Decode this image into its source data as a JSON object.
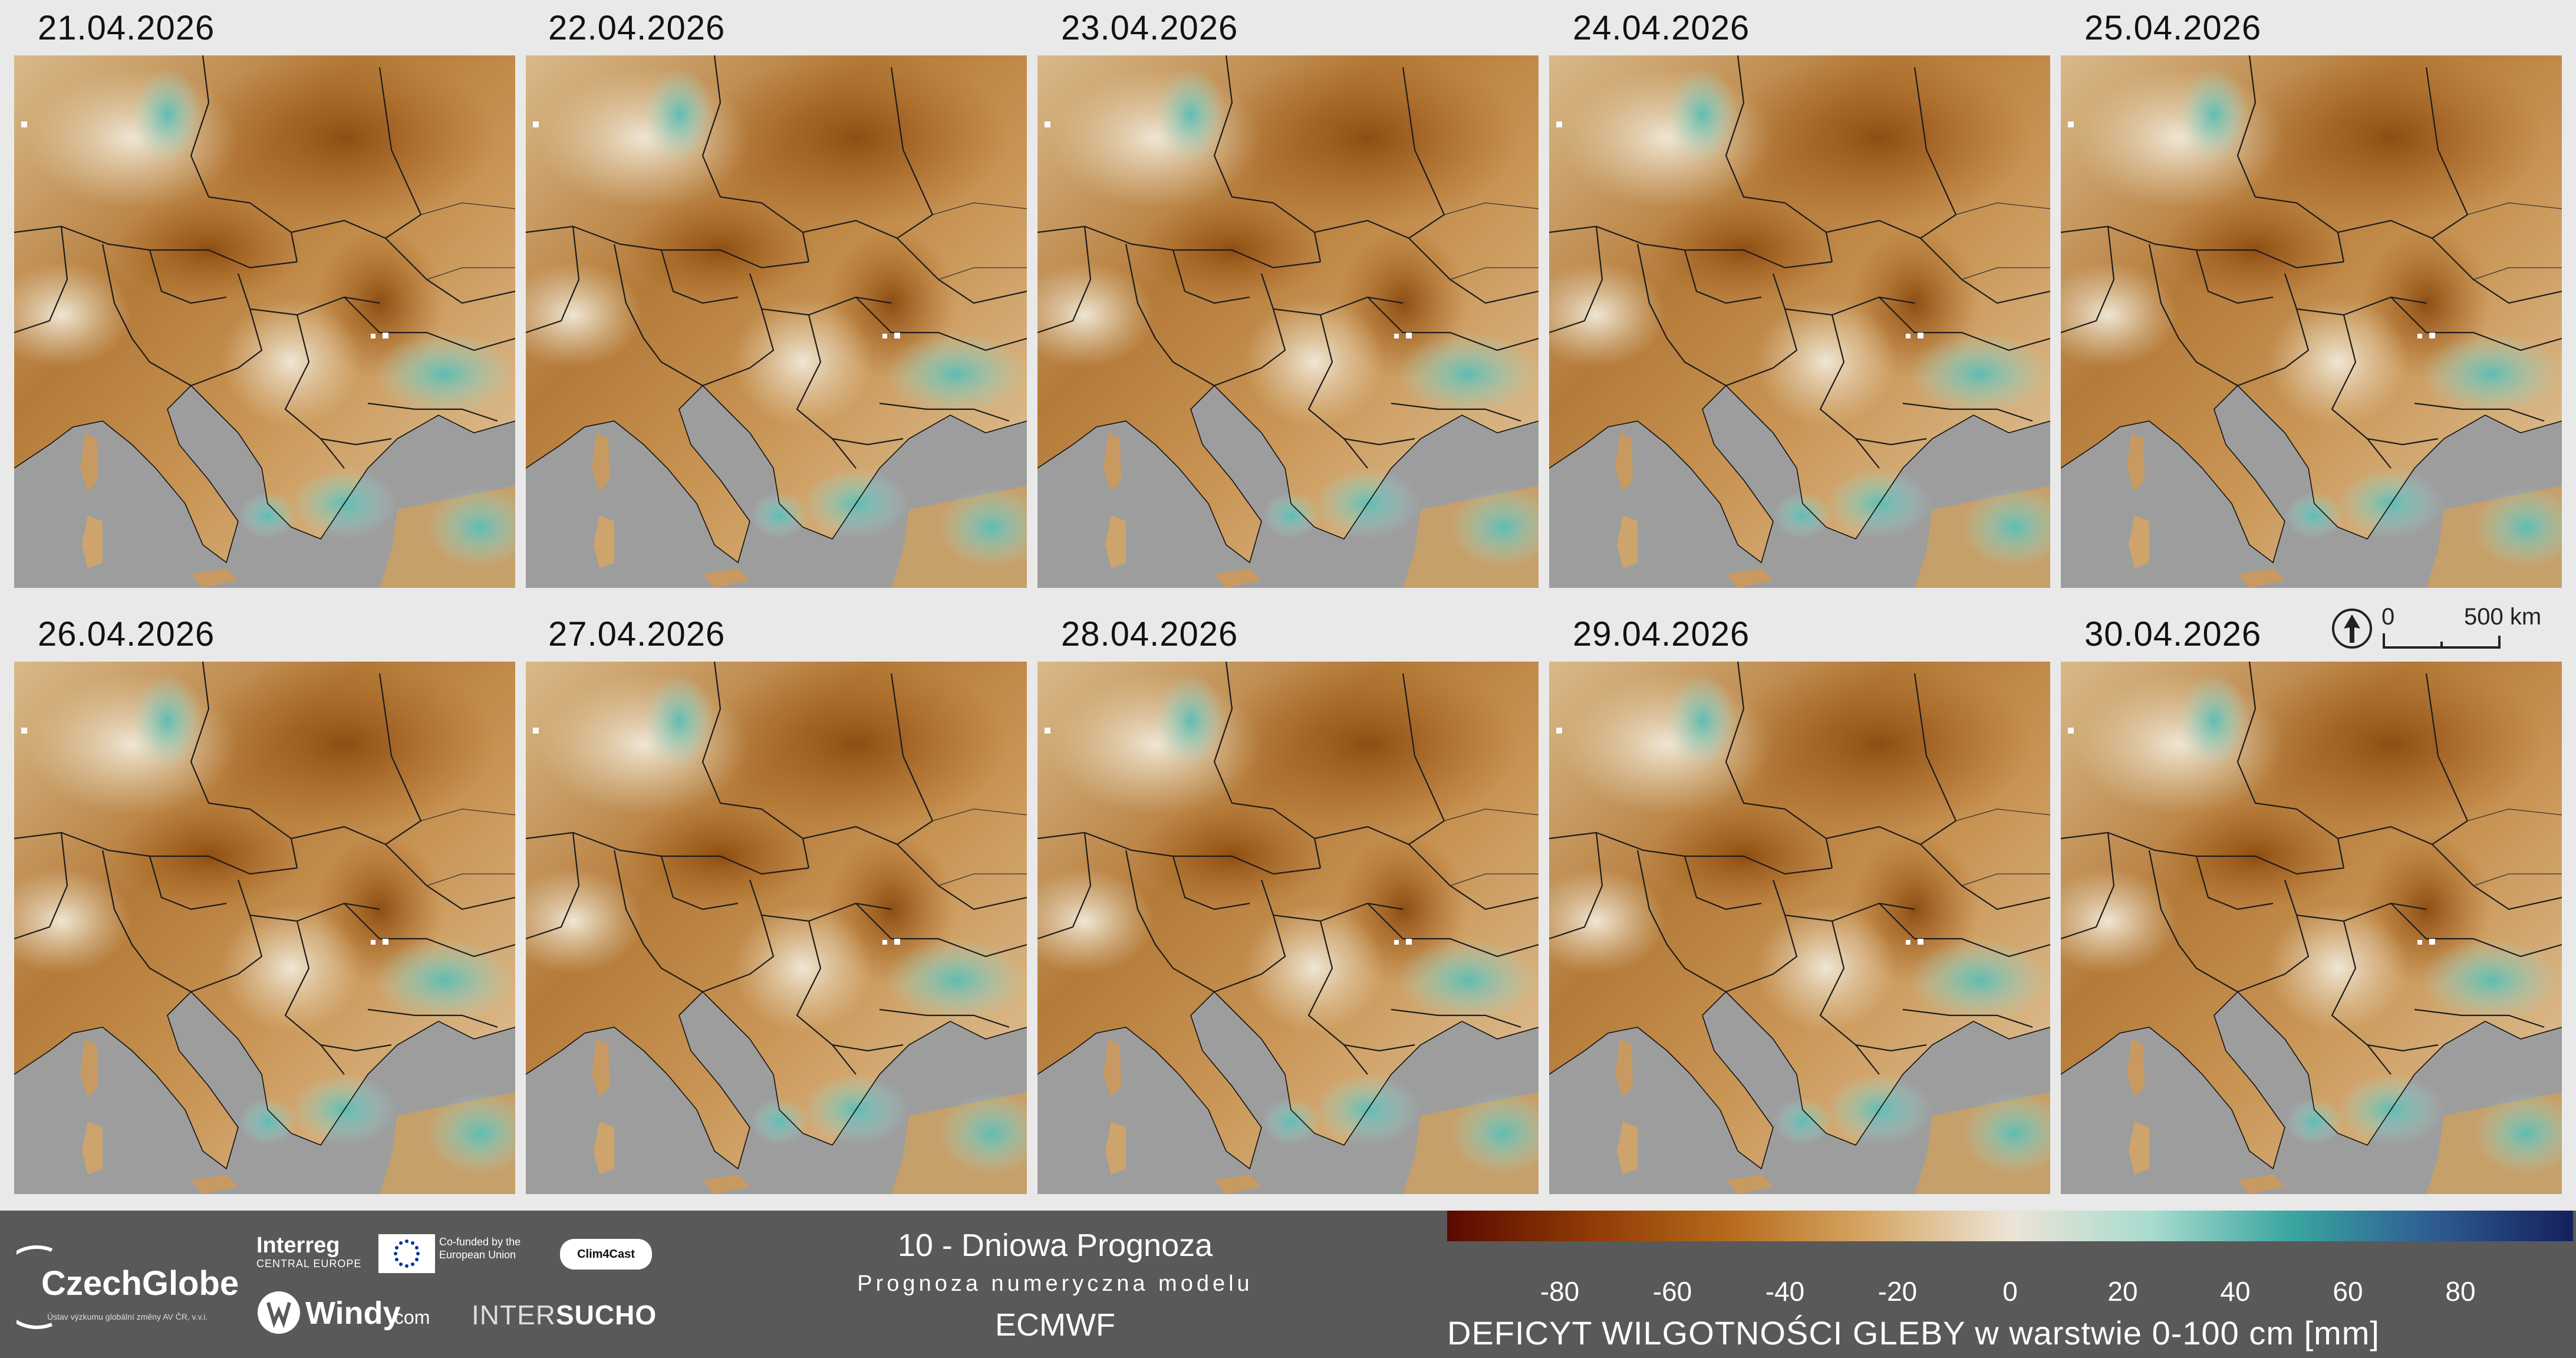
{
  "panels": [
    {
      "date": "21.04.2026"
    },
    {
      "date": "22.04.2026"
    },
    {
      "date": "23.04.2026"
    },
    {
      "date": "24.04.2026"
    },
    {
      "date": "25.04.2026"
    },
    {
      "date": "26.04.2026"
    },
    {
      "date": "27.04.2026"
    },
    {
      "date": "28.04.2026"
    },
    {
      "date": "29.04.2026"
    },
    {
      "date": "30.04.2026"
    }
  ],
  "scale_bar": {
    "start": "0",
    "end": "500 km"
  },
  "footer": {
    "title": "10 - Dniowa Prognoza",
    "subtitle": "Prognoza numeryczna modelu",
    "model": "ECMWF"
  },
  "logos": {
    "czechglobe": "CzechGlobe",
    "czechglobe_sub": "Ústav výzkumu globální změny AV ČR, v.v.i.",
    "interreg": "Interreg",
    "interreg_sub": "CENTRAL EUROPE",
    "eu": "Co-funded by the European Union",
    "clim4cast": "Clim4Cast",
    "windy": "Windy",
    "windy_com": ".com",
    "intersucho_a": "INTER",
    "intersucho_b": "SUCHO"
  },
  "legend": {
    "title": "DEFICYT WILGOTNOŚCI GLEBY w warstwie 0-100 cm [mm]",
    "ticks": [
      "-80",
      "-60",
      "-40",
      "-20",
      "0",
      "20",
      "40",
      "60",
      "80"
    ],
    "colors": [
      "#5a0a00",
      "#8e3a05",
      "#b66a1c",
      "#d6a866",
      "#ece4d6",
      "#a8dccf",
      "#3aa6a0",
      "#2e5c92",
      "#15205c"
    ]
  }
}
